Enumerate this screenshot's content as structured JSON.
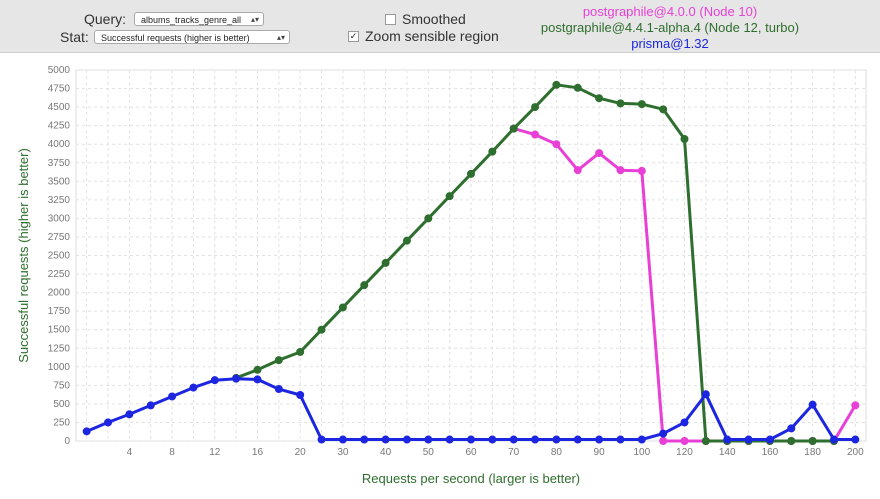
{
  "controls": {
    "query_label": "Query:",
    "query_value": "albums_tracks_genre_all",
    "stat_label": "Stat:",
    "stat_value": "Successful requests (higher is better)",
    "smoothed_label": "Smoothed",
    "smoothed_checked": false,
    "zoom_label": "Zoom sensible region",
    "zoom_checked": true
  },
  "legend": [
    {
      "name": "postgraphile@4.0.0 (Node 10)",
      "color": "#e83fd7"
    },
    {
      "name": "postgraphile@4.4.1-alpha.4 (Node 12, turbo)",
      "color": "#2e6e2e"
    },
    {
      "name": "prisma@1.32",
      "color": "#1c25e0"
    }
  ],
  "chart_data": {
    "type": "line",
    "xlabel": "Requests per second (larger is better)",
    "ylabel": "Successful requests (higher is better)",
    "xlim": [
      0,
      200
    ],
    "ylim": [
      0,
      5000
    ],
    "grid": true,
    "x_ticks": [
      4,
      8,
      12,
      16,
      20,
      30,
      40,
      50,
      60,
      70,
      80,
      90,
      100,
      120,
      140,
      160,
      180,
      200
    ],
    "y_ticks": [
      0,
      250,
      500,
      750,
      1000,
      1250,
      1500,
      1750,
      2000,
      2250,
      2500,
      2750,
      3000,
      3250,
      3500,
      3750,
      4000,
      4250,
      4500,
      4750,
      5000
    ],
    "x_points": [
      1,
      2,
      4,
      6,
      8,
      10,
      12,
      14,
      16,
      18,
      20,
      25,
      30,
      35,
      40,
      45,
      50,
      55,
      60,
      65,
      70,
      75,
      80,
      85,
      90,
      95,
      100,
      110,
      120,
      130,
      140,
      150,
      160,
      170,
      180,
      190,
      200
    ],
    "series": [
      {
        "name": "postgraphile@4.0.0 (Node 10)",
        "color": "#e83fd7",
        "x": [
          70,
          75,
          80,
          85,
          90,
          95,
          100,
          110,
          120,
          130,
          140,
          150,
          160,
          170,
          180,
          190,
          200
        ],
        "values": [
          4210,
          4130,
          4000,
          3650,
          3880,
          3650,
          3640,
          0,
          0,
          0,
          0,
          0,
          0,
          0,
          0,
          0,
          480
        ]
      },
      {
        "name": "postgraphile@4.4.1-alpha.4 (Node 12, turbo)",
        "color": "#2e6e2e",
        "x": [
          14,
          16,
          18,
          20,
          25,
          30,
          35,
          40,
          45,
          50,
          55,
          60,
          65,
          70,
          75,
          80,
          85,
          90,
          95,
          100,
          110,
          120,
          130,
          140,
          150,
          160,
          170,
          180,
          190
        ],
        "values": [
          850,
          960,
          1090,
          1200,
          1500,
          1800,
          2100,
          2400,
          2700,
          3000,
          3300,
          3600,
          3900,
          4210,
          4500,
          4800,
          4760,
          4620,
          4550,
          4540,
          4470,
          4070,
          0,
          0,
          0,
          0,
          0,
          0,
          0
        ]
      },
      {
        "name": "prisma@1.32",
        "color": "#1c25e0",
        "x": [
          1,
          2,
          4,
          6,
          8,
          10,
          12,
          14,
          16,
          18,
          20,
          25,
          30,
          35,
          40,
          45,
          50,
          55,
          60,
          65,
          70,
          75,
          80,
          85,
          90,
          95,
          100,
          110,
          120,
          130,
          140,
          150,
          160,
          170,
          180,
          190,
          200
        ],
        "values": [
          130,
          250,
          360,
          480,
          600,
          720,
          820,
          840,
          830,
          700,
          620,
          20,
          20,
          20,
          20,
          20,
          20,
          20,
          20,
          20,
          20,
          20,
          20,
          20,
          20,
          20,
          20,
          100,
          250,
          630,
          20,
          20,
          20,
          170,
          490,
          20,
          20
        ]
      }
    ]
  }
}
